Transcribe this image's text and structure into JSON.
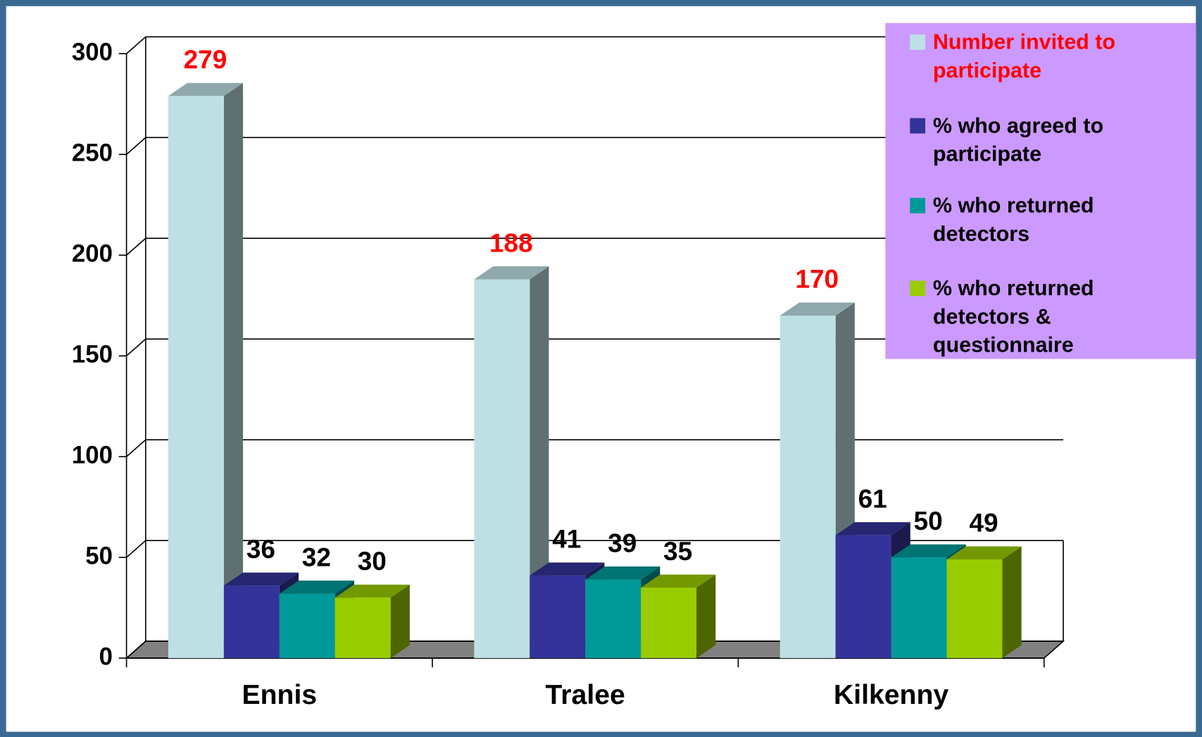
{
  "chart_data": {
    "type": "bar",
    "categories": [
      "Ennis",
      "Tralee",
      "Kilkenny"
    ],
    "series": [
      {
        "name": "Number invited to participate",
        "color": "#bde0e4",
        "values": [
          279,
          188,
          170
        ]
      },
      {
        "name": "% who agreed to participate",
        "color": "#333399",
        "values": [
          36,
          41,
          61
        ]
      },
      {
        "name": "% who returned detectors",
        "color": "#009999",
        "values": [
          32,
          39,
          50
        ]
      },
      {
        "name": "% who returned detectors & questionnaire",
        "color": "#99cc00",
        "values": [
          30,
          35,
          49
        ]
      }
    ],
    "ylim": [
      0,
      300
    ],
    "yticks": [
      0,
      50,
      100,
      150,
      200,
      250,
      300
    ],
    "grid": true,
    "legend": "top-right"
  }
}
